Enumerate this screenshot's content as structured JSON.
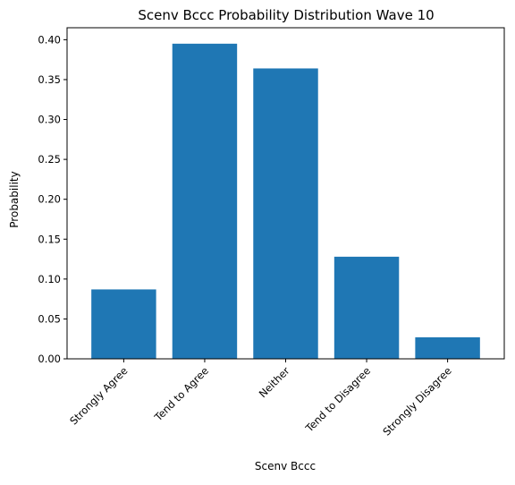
{
  "chart_data": {
    "type": "bar",
    "title": "Scenv Bccc Probability Distribution Wave 10",
    "xlabel": "Scenv Bccc",
    "ylabel": "Probability",
    "categories": [
      "Strongly Agree",
      "Tend to Agree",
      "Neither",
      "Tend to Disagree",
      "Strongly Disagree"
    ],
    "values": [
      0.087,
      0.395,
      0.364,
      0.128,
      0.027
    ],
    "ylim": [
      0,
      0.415
    ],
    "yticks": [
      "0.00",
      "0.05",
      "0.10",
      "0.15",
      "0.20",
      "0.25",
      "0.30",
      "0.35",
      "0.40"
    ],
    "bar_color": "#1f77b4",
    "grid": false,
    "legend": false
  }
}
